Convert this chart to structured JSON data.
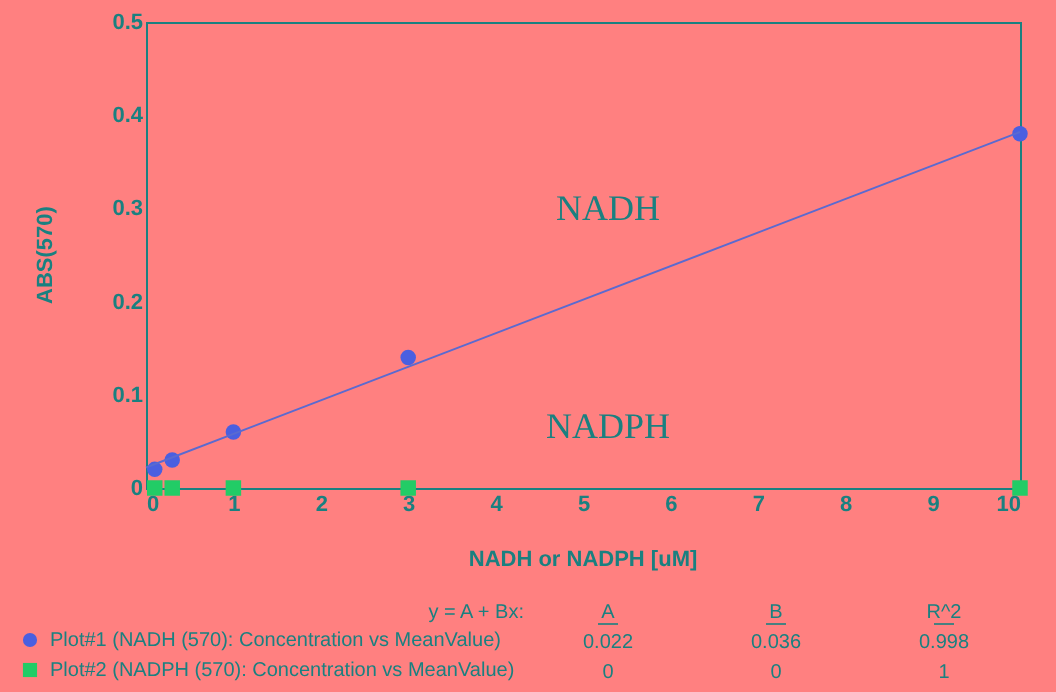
{
  "chart_data": {
    "type": "scatter",
    "xlabel": "NADH or NADPH [uM]",
    "ylabel": "ABS(570)",
    "x": [
      0.1,
      0.3,
      1,
      3,
      10
    ],
    "series": [
      {
        "name": "Plot#1 (NADH (570): Concentration vs MeanValue)",
        "color": "#4a5fe0",
        "marker": "circle",
        "values": [
          0.02,
          0.03,
          0.06,
          0.14,
          0.38
        ]
      },
      {
        "name": "Plot#2 (NADPH (570): Concentration vs MeanValue)",
        "color": "#22cc66",
        "marker": "square",
        "values": [
          0,
          0,
          0,
          0,
          0
        ]
      },
      {
        "type": "line",
        "color": "#5a6ad0",
        "marker": "none",
        "x": [
          0,
          10
        ],
        "values": [
          0.022,
          0.382
        ]
      }
    ],
    "xlim": [
      0,
      10
    ],
    "xticks": [
      0,
      1,
      2,
      3,
      4,
      5,
      6,
      7,
      8,
      9,
      10
    ],
    "ylim": [
      0,
      0.5
    ],
    "yticks": [
      {
        "value": 0,
        "label": "0"
      },
      0.1,
      0.2,
      0.3,
      0.4,
      0.5
    ],
    "grid": false,
    "legend": "bottom",
    "annotations": [
      "NADH",
      "NADPH",
      "y = A + Bx:",
      "A",
      "B",
      "R^2",
      "0.022",
      "0.036",
      "0.998",
      "0",
      "0",
      "1"
    ]
  }
}
